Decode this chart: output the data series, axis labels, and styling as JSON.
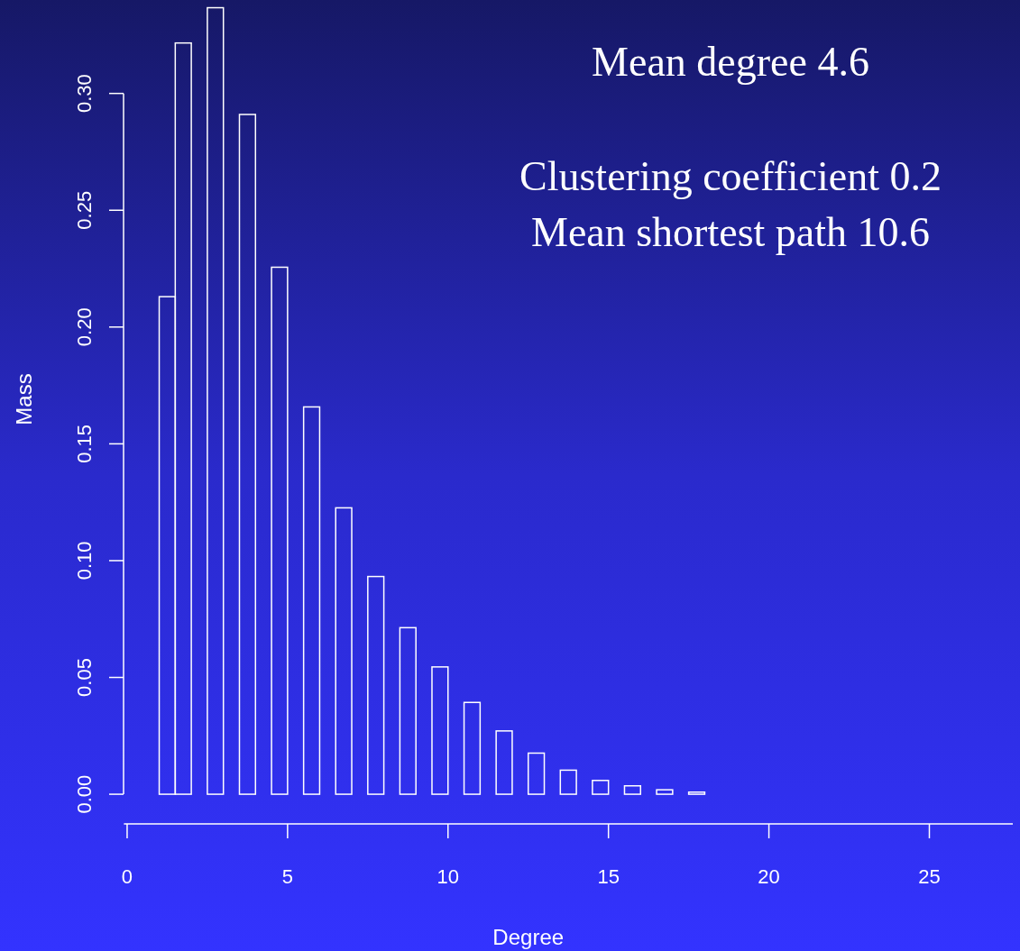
{
  "chart_data": {
    "type": "histogram",
    "xlabel": "Degree",
    "ylabel": "Mass",
    "annotations": [
      "Mean degree 4.6",
      "Clustering coefficient 0.2",
      "Mean shortest path 10.6"
    ],
    "bins": [
      1,
      1.5,
      2,
      2.5,
      3,
      3.5,
      4,
      4.5,
      5,
      5.5,
      6,
      6.5,
      7,
      7.5,
      8,
      8.5,
      9,
      9.5,
      10,
      10.5,
      11,
      11.5,
      12,
      12.5,
      13,
      13.5,
      14,
      14.5,
      15,
      15.5,
      16,
      16.5,
      17,
      17.5,
      18,
      18.5,
      19,
      19.5,
      20,
      20.5,
      21,
      21.5,
      22,
      22.5,
      23,
      23.5,
      24,
      24.5,
      25,
      25.5,
      26,
      26.5,
      27,
      27.5
    ],
    "values": [
      0.213,
      0.3216,
      0,
      0.3367,
      0,
      0.291,
      0,
      0.2256,
      0,
      0.1658,
      0,
      0.1226,
      0,
      0.0932,
      0,
      0.0713,
      0,
      0.0545,
      0,
      0.0393,
      0,
      0.0271,
      0,
      0.0176,
      0,
      0.0103,
      0,
      0.0059,
      0,
      0.0036,
      0,
      0.0019,
      0,
      0.0009,
      0,
      0,
      0,
      0,
      0,
      0,
      0,
      0,
      0,
      0,
      0,
      0,
      0,
      0,
      0,
      0,
      0,
      0,
      0
    ],
    "color": "#ffffff",
    "xlim": [
      -0.1,
      27.6
    ],
    "ylim": [
      -0.0127,
      0.34
    ],
    "xticks": [
      0,
      5,
      10,
      15,
      20,
      25
    ],
    "yticks": [
      {
        "value": 0,
        "label": "0.00"
      },
      {
        "value": 0.05,
        "label": "0.05"
      },
      {
        "value": 0.1,
        "label": "0.10"
      },
      {
        "value": 0.15,
        "label": "0.15"
      },
      {
        "value": 0.2,
        "label": "0.20"
      },
      {
        "value": 0.25,
        "label": "0.25"
      },
      {
        "value": 0.3,
        "label": "0.30"
      }
    ],
    "grid": false
  }
}
